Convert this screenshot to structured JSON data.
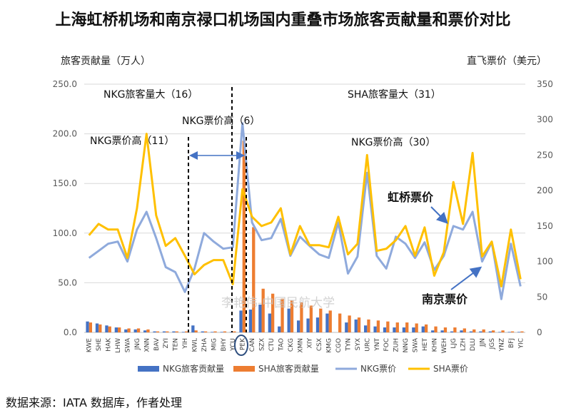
{
  "title": "上海虹桥机场和南京禄口机场国内重叠市场旅客贡献量和票价对比",
  "source": "数据来源：IATA 数据库，作者处理",
  "chart_data": {
    "type": "bar+line",
    "left_axis_label": "旅客贡献量（万人）",
    "right_axis_label": "直飞票价（美元）",
    "left_ticks": [
      "0.0",
      "50.0",
      "100.0",
      "150.0",
      "200.0",
      "250.0"
    ],
    "right_ticks": [
      "0",
      "50",
      "100",
      "150",
      "200",
      "250",
      "300",
      "350"
    ],
    "ylim_left": [
      0,
      250
    ],
    "ylim_right": [
      0,
      350
    ],
    "categories": [
      "KWE",
      "SHE",
      "HAK",
      "LHW",
      "SWA",
      "JNG",
      "XNN",
      "BAV",
      "ZYI",
      "TEN",
      "YIH",
      "KWL",
      "ZHA",
      "MIG",
      "BHY",
      "YCU",
      "PEK",
      "CAN",
      "SZX",
      "CTU",
      "TAO",
      "CKG",
      "XMN",
      "XIY",
      "CSX",
      "KMG",
      "CGO",
      "TYN",
      "SYX",
      "URC",
      "YNT",
      "FOC",
      "ZUH",
      "NNG",
      "SWA",
      "HET",
      "KHN",
      "WEH",
      "LJG",
      "LZH",
      "DLU",
      "JJN",
      "JGS",
      "YNZ",
      "BFJ",
      "YIC"
    ],
    "series": [
      {
        "name": "NKG旅客贡献量",
        "type": "bar",
        "axis": "left",
        "color": "#4472C4",
        "values": [
          11,
          9,
          7,
          5,
          3,
          3,
          2,
          1,
          1,
          1,
          0.5,
          7,
          1,
          0.5,
          0.5,
          0.5,
          22,
          23,
          28,
          19,
          6,
          24,
          12,
          14,
          15,
          19,
          0,
          10,
          13,
          7,
          6,
          5,
          5,
          5,
          5,
          6,
          2,
          2,
          1,
          2,
          1,
          1,
          1,
          0.5,
          0.5,
          0.5
        ]
      },
      {
        "name": "SHA旅客贡献量",
        "type": "bar",
        "axis": "left",
        "color": "#ED7D31",
        "values": [
          10,
          8,
          6,
          5,
          4,
          4,
          3,
          1,
          1,
          1,
          1,
          2,
          1,
          1,
          1,
          1,
          193,
          106,
          44,
          39,
          34,
          32,
          30,
          27,
          24,
          22,
          19,
          17,
          15,
          13,
          12,
          11,
          10,
          10,
          9,
          8,
          6,
          5,
          5,
          4,
          3,
          3,
          2,
          2,
          1,
          1
        ]
      },
      {
        "name": "NKG票价",
        "type": "line",
        "axis": "right",
        "color": "#8FAADC",
        "values": [
          105,
          115,
          125,
          128,
          100,
          145,
          170,
          133,
          92,
          85,
          57,
          90,
          140,
          128,
          118,
          120,
          295,
          155,
          130,
          133,
          160,
          108,
          135,
          122,
          110,
          105,
          155,
          83,
          107,
          225,
          108,
          90,
          135,
          125,
          105,
          127,
          88,
          108,
          150,
          145,
          170,
          100,
          127,
          47,
          125,
          65
        ]
      },
      {
        "name": "SHA票价",
        "type": "line",
        "axis": "right",
        "color": "#FFC000",
        "values": [
          137,
          153,
          145,
          145,
          105,
          175,
          280,
          165,
          122,
          133,
          108,
          82,
          95,
          102,
          102,
          68,
          202,
          163,
          150,
          155,
          175,
          110,
          150,
          123,
          123,
          120,
          163,
          110,
          125,
          250,
          115,
          118,
          130,
          150,
          108,
          148,
          80,
          113,
          212,
          153,
          253,
          107,
          128,
          65,
          145,
          75
        ]
      }
    ],
    "annotations": {
      "nkg_pax_more": "NKG旅客量大（16）",
      "nkg_fare_higher_left": "NKG票价高（11）",
      "nkg_fare_higher_mid": "NKG票价高（6）",
      "sha_pax_more": "SHA旅客量大（31）",
      "nkg_fare_higher_right": "NKG票价高（30）",
      "hongqiao_fare": "虹桥票价",
      "nanjing_fare": "南京票价",
      "watermark": "李艳伟-中国民航大学"
    },
    "legend_position": "bottom"
  },
  "colors": {
    "nkg_bar": "#4472C4",
    "sha_bar": "#ED7D31",
    "nkg_line": "#8FAADC",
    "sha_line": "#FFC000",
    "grid": "#d9d9d9",
    "axis_text": "#595959",
    "annotation_arrow": "#4472C4"
  }
}
